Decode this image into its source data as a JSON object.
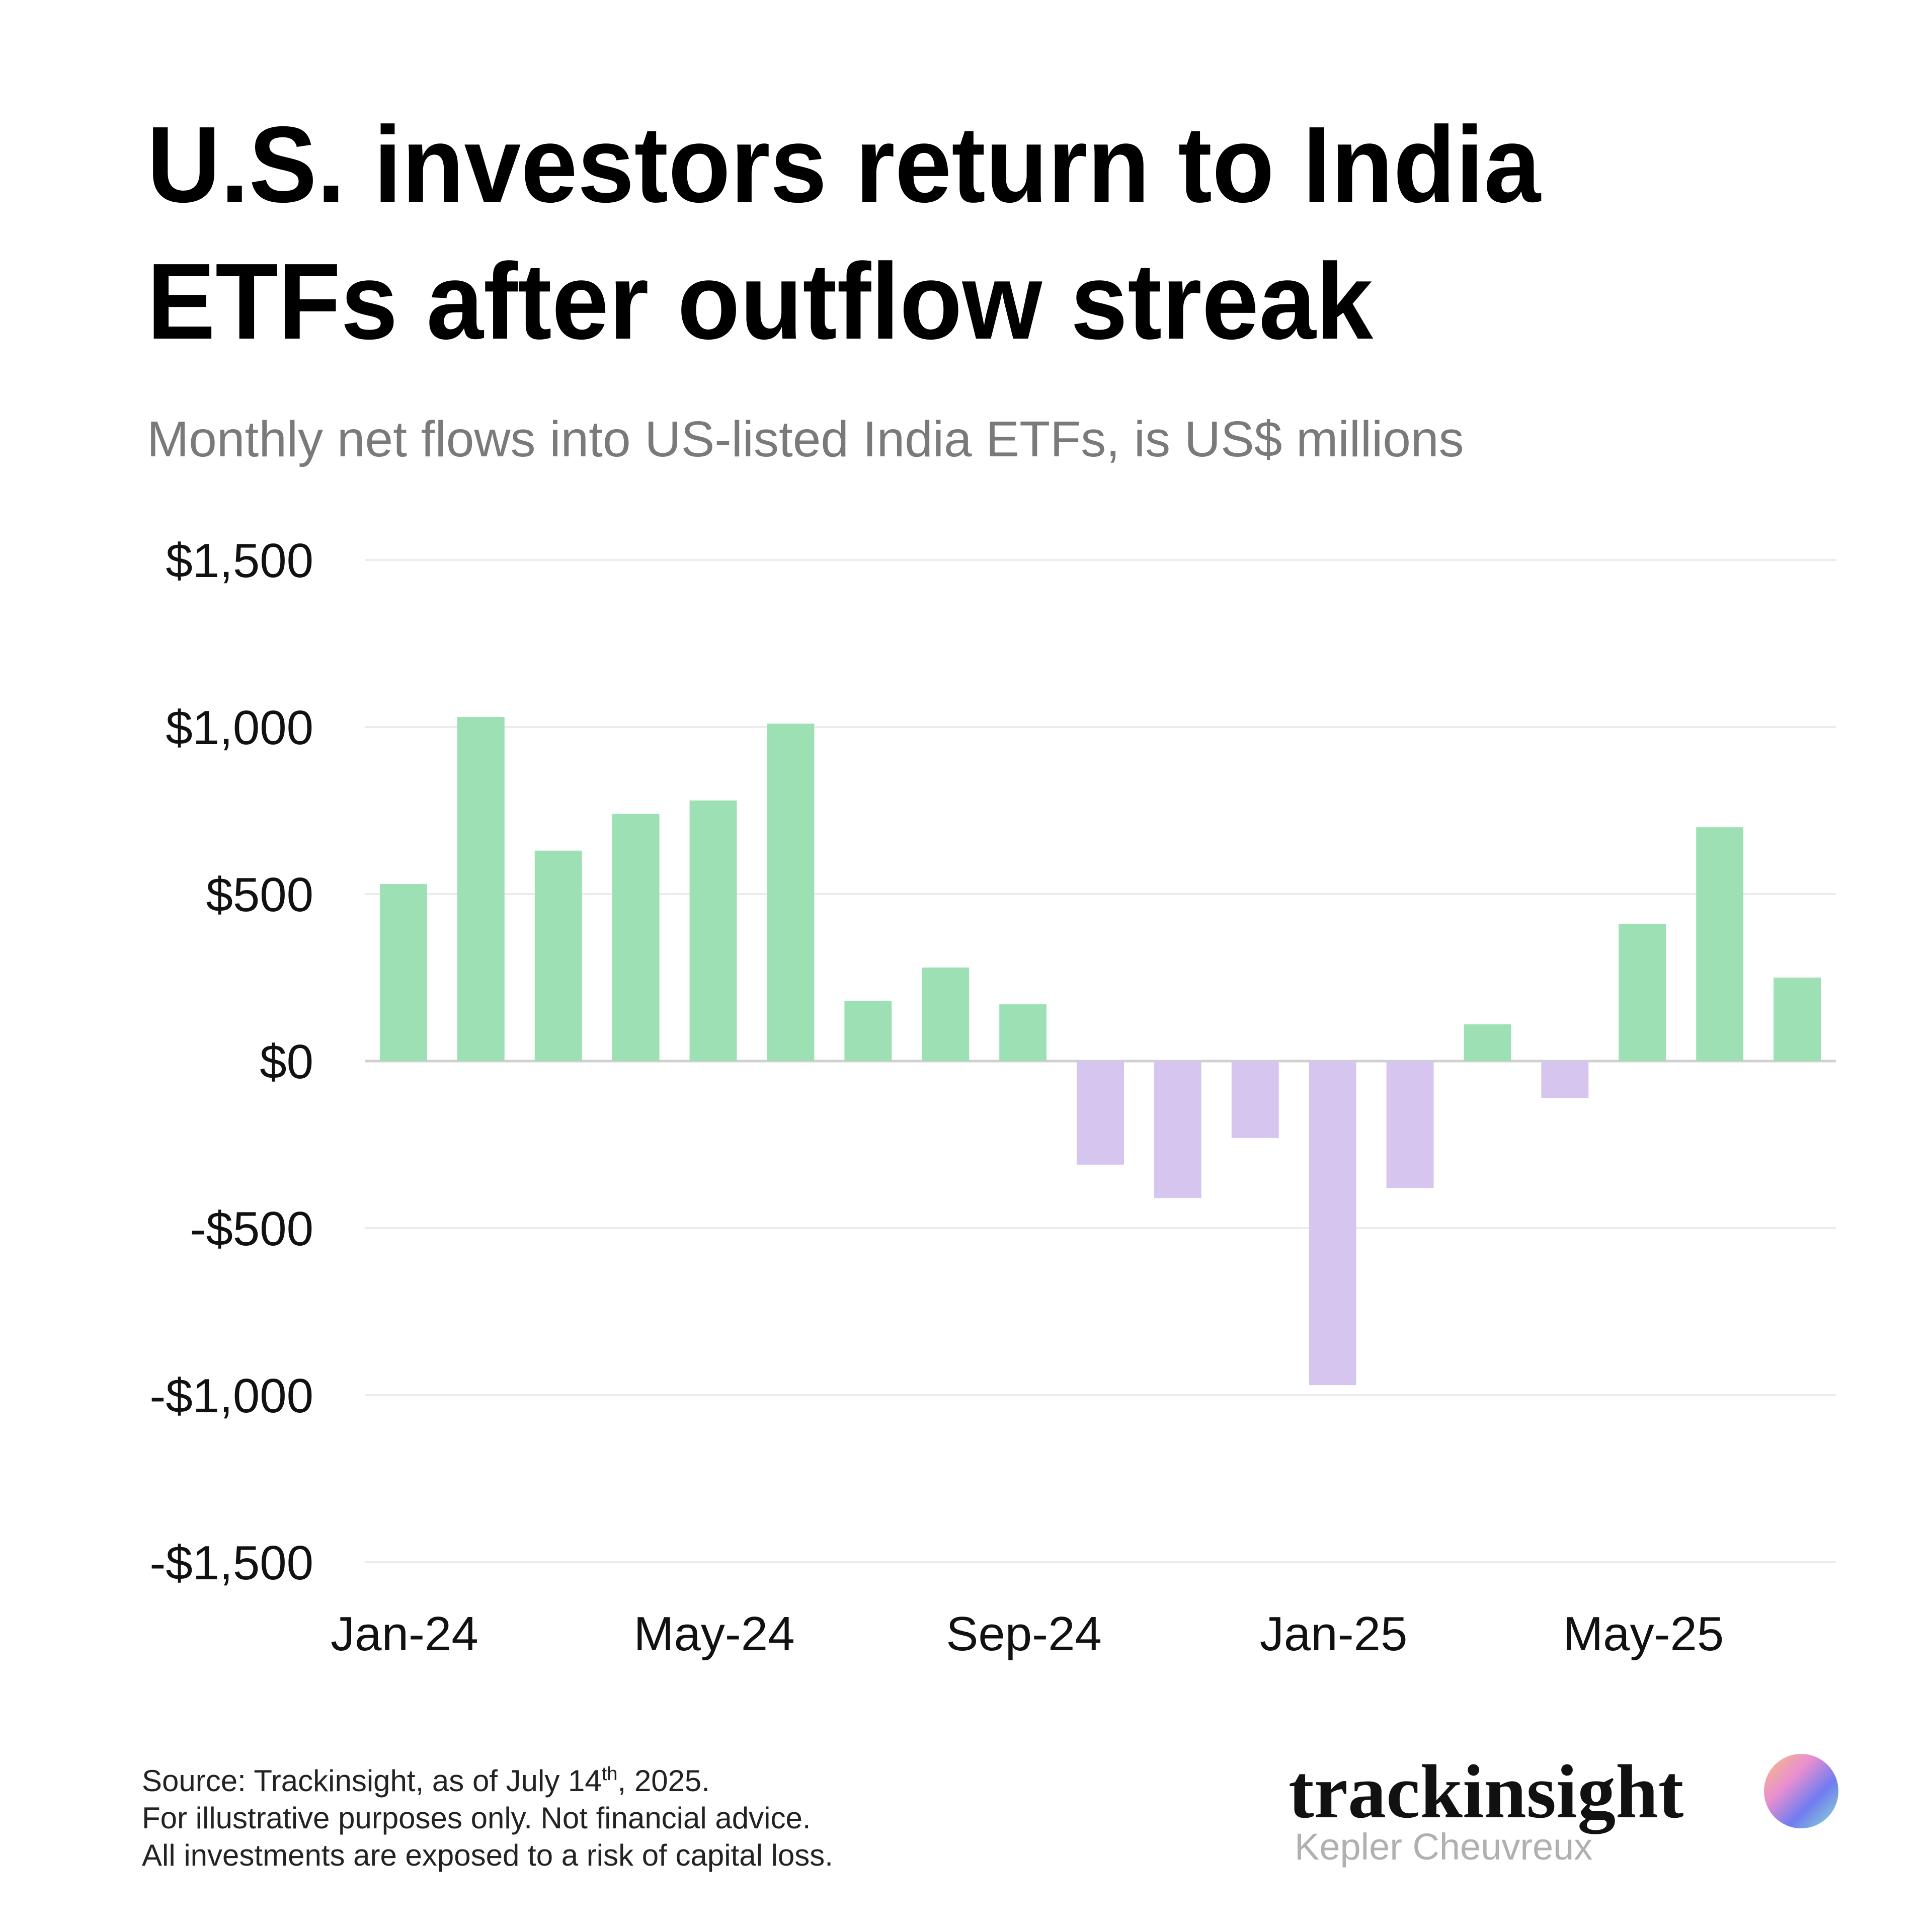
{
  "chart_data": {
    "type": "bar",
    "title_lines": [
      "U.S. investors return to India",
      "ETFs after outflow streak"
    ],
    "subtitle": "Monthly net flows into US-listed India ETFs, is US$ millions",
    "categories": [
      "Jan-24",
      null,
      null,
      null,
      "May-24",
      null,
      null,
      null,
      "Sep-24",
      null,
      null,
      null,
      "Jan-25",
      null,
      null,
      null,
      "May-25",
      null,
      null
    ],
    "values": [
      530,
      1030,
      630,
      740,
      780,
      1010,
      180,
      280,
      170,
      -310,
      -410,
      -230,
      -970,
      -380,
      110,
      -110,
      410,
      700,
      250
    ],
    "positive_color": "#9de0b4",
    "negative_color": "#d6c5ef",
    "ylim": [
      -1500,
      1500
    ],
    "yticks": [
      {
        "value": -1500,
        "label": "-$1,500"
      },
      {
        "value": -1000,
        "label": "-$1,000"
      },
      {
        "value": -500,
        "label": "-$500"
      },
      {
        "value": 0,
        "label": "$0"
      },
      {
        "value": 500,
        "label": "$500"
      },
      {
        "value": 1000,
        "label": "$1,000"
      },
      {
        "value": 1500,
        "label": "$1,500"
      }
    ],
    "grid": true
  },
  "footer": {
    "source_parts": [
      "Source: Trackinsight, as of July 14",
      "th",
      ", 2025."
    ],
    "disclaimer_1": "For illustrative purposes only. Not financial advice.",
    "disclaimer_2": "All investments are exposed to a risk of capital loss."
  },
  "logo": {
    "name": "trackinsight",
    "tagline": "Kepler Cheuvreux"
  }
}
